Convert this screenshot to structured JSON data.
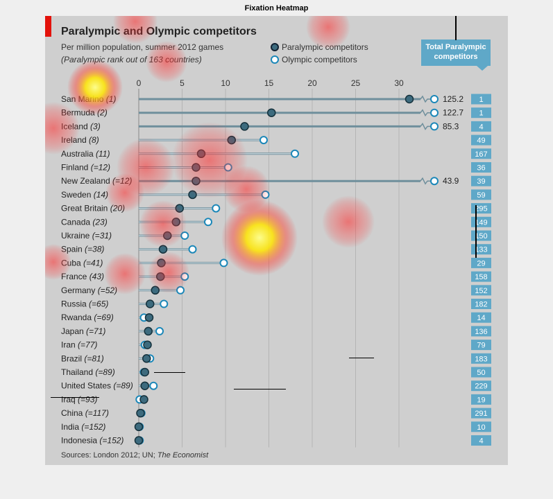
{
  "figure_title": "Fixation Heatmap",
  "chart": {
    "title": "Paralympic and Olympic competitors",
    "subtitle": "Per million population, summer 2012 games",
    "note": "(Paralympic rank out of 163 countries)",
    "legend": {
      "paralympic": "Paralympic competitors",
      "olympic": "Olympic competitors"
    },
    "total_header": "Total Paralympic competitors",
    "source_prefix": "Sources: London 2012; UN; ",
    "source_italic": "The Economist"
  },
  "chart_data": {
    "type": "scatter",
    "title": "Paralympic and Olympic competitors",
    "subtitle": "Per million population, summer 2012 games",
    "xlim": [
      0,
      32
    ],
    "xticks": [
      0,
      5,
      10,
      15,
      20,
      25,
      30
    ],
    "grid": true,
    "legend_position": "top-right",
    "colors": {
      "paralympic": "#3d6b7e",
      "olympic_stroke": "#1b87b8",
      "total_bg": "#5fa8c8",
      "heat_hot": "#ffff00",
      "heat_warm": "#ff3b3b"
    },
    "rows": [
      {
        "country": "San Marino",
        "rank": "(1)",
        "paralympic": 31.2,
        "olympic": 125.2,
        "olympic_label": "125.2",
        "broken": true,
        "total": "1"
      },
      {
        "country": "Bermuda",
        "rank": "(2)",
        "paralympic": 15.3,
        "olympic": 122.7,
        "olympic_label": "122.7",
        "broken": true,
        "total": "1"
      },
      {
        "country": "Iceland",
        "rank": "(3)",
        "paralympic": 12.2,
        "olympic": 85.3,
        "olympic_label": "85.3",
        "broken": true,
        "total": "4"
      },
      {
        "country": "Ireland",
        "rank": "(8)",
        "paralympic": 10.7,
        "olympic": 14.4,
        "olympic_label": "",
        "broken": false,
        "total": "49"
      },
      {
        "country": "Australia",
        "rank": "(11)",
        "paralympic": 7.2,
        "olympic": 18.0,
        "olympic_label": "",
        "broken": false,
        "total": "167"
      },
      {
        "country": "Finland",
        "rank": "(=12)",
        "paralympic": 6.6,
        "olympic": 10.3,
        "olympic_label": "",
        "broken": false,
        "total": "36"
      },
      {
        "country": "New Zealand",
        "rank": "(=12)",
        "paralympic": 6.6,
        "olympic": 43.9,
        "olympic_label": "43.9",
        "broken": true,
        "total": "39"
      },
      {
        "country": "Sweden",
        "rank": "(14)",
        "paralympic": 6.2,
        "olympic": 14.6,
        "olympic_label": "",
        "broken": false,
        "total": "59"
      },
      {
        "country": "Great Britain",
        "rank": "(20)",
        "paralympic": 4.7,
        "olympic": 8.9,
        "olympic_label": "",
        "broken": false,
        "total": "295"
      },
      {
        "country": "Canada",
        "rank": "(23)",
        "paralympic": 4.3,
        "olympic": 8.0,
        "olympic_label": "",
        "broken": false,
        "total": "149"
      },
      {
        "country": "Ukraine",
        "rank": "(=31)",
        "paralympic": 3.3,
        "olympic": 5.3,
        "olympic_label": "",
        "broken": false,
        "total": "150"
      },
      {
        "country": "Spain",
        "rank": "(=38)",
        "paralympic": 2.8,
        "olympic": 6.2,
        "olympic_label": "",
        "broken": false,
        "total": "133"
      },
      {
        "country": "Cuba",
        "rank": "(=41)",
        "paralympic": 2.6,
        "olympic": 9.8,
        "olympic_label": "",
        "broken": false,
        "total": "29"
      },
      {
        "country": "France",
        "rank": "(43)",
        "paralympic": 2.5,
        "olympic": 5.3,
        "olympic_label": "",
        "broken": false,
        "total": "158"
      },
      {
        "country": "Germany",
        "rank": "(=52)",
        "paralympic": 1.9,
        "olympic": 4.8,
        "olympic_label": "",
        "broken": false,
        "total": "152"
      },
      {
        "country": "Russia",
        "rank": "(=65)",
        "paralympic": 1.3,
        "olympic": 2.9,
        "olympic_label": "",
        "broken": false,
        "total": "182"
      },
      {
        "country": "Rwanda",
        "rank": "(=69)",
        "paralympic": 1.2,
        "olympic": 0.6,
        "olympic_label": "",
        "broken": false,
        "total": "14"
      },
      {
        "country": "Japan",
        "rank": "(=71)",
        "paralympic": 1.1,
        "olympic": 2.4,
        "olympic_label": "",
        "broken": false,
        "total": "136"
      },
      {
        "country": "Iran",
        "rank": "(=77)",
        "paralympic": 1.0,
        "olympic": 0.7,
        "olympic_label": "",
        "broken": false,
        "total": "79"
      },
      {
        "country": "Brazil",
        "rank": "(=81)",
        "paralympic": 0.9,
        "olympic": 1.3,
        "olympic_label": "",
        "broken": false,
        "total": "183"
      },
      {
        "country": "Thailand",
        "rank": "(=89)",
        "paralympic": 0.7,
        "olympic": 0.6,
        "olympic_label": "",
        "broken": false,
        "total": "50"
      },
      {
        "country": "United States",
        "rank": "(=89)",
        "paralympic": 0.7,
        "olympic": 1.7,
        "olympic_label": "",
        "broken": false,
        "total": "229"
      },
      {
        "country": "Iraq",
        "rank": "(=93)",
        "paralympic": 0.6,
        "olympic": 0.1,
        "olympic_label": "",
        "broken": false,
        "total": "19"
      },
      {
        "country": "China",
        "rank": "(=117)",
        "paralympic": 0.2,
        "olympic": 0.3,
        "olympic_label": "",
        "broken": false,
        "total": "291"
      },
      {
        "country": "India",
        "rank": "(=152)",
        "paralympic": 0.0,
        "olympic": 0.1,
        "olympic_label": "",
        "broken": false,
        "total": "10"
      },
      {
        "country": "Indonesia",
        "rank": "(=152)",
        "paralympic": 0.0,
        "olympic": 0.1,
        "olympic_label": "",
        "broken": false,
        "total": "4"
      }
    ]
  }
}
